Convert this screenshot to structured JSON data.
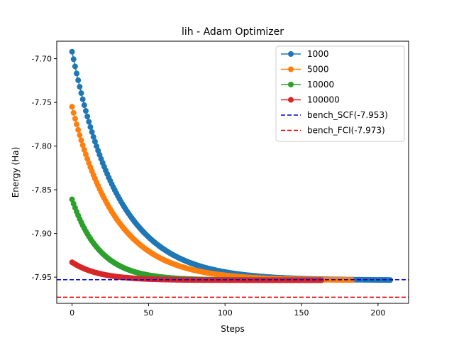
{
  "chart_data": {
    "type": "line",
    "title": "lih - Adam Optimizer",
    "xlabel": "Steps",
    "ylabel": "Energy (Ha)",
    "xlim": [
      -10,
      220
    ],
    "ylim": [
      -7.98,
      -7.68
    ],
    "xticks": [
      0,
      50,
      100,
      150,
      200
    ],
    "yticks": [
      -7.7,
      -7.75,
      -7.8,
      -7.85,
      -7.9,
      -7.95
    ],
    "xtick_labels": [
      "0",
      "50",
      "100",
      "150",
      "200"
    ],
    "ytick_labels": [
      "-7.70",
      "-7.75",
      "-7.80",
      "-7.85",
      "-7.90",
      "-7.95"
    ],
    "grid": false,
    "legend_position": "top-right",
    "series": [
      {
        "name": "1000",
        "color": "#1f77b4",
        "marker": "circle",
        "steps": 209,
        "start": -7.692,
        "end": -7.9535,
        "tau": 30
      },
      {
        "name": "5000",
        "color": "#ff7f0e",
        "marker": "circle",
        "steps": 184,
        "start": -7.755,
        "end": -7.9535,
        "tau": 28
      },
      {
        "name": "10000",
        "color": "#2ca02c",
        "marker": "circle",
        "steps": 164,
        "start": -7.861,
        "end": -7.9535,
        "tau": 18
      },
      {
        "name": "100000",
        "color": "#d62728",
        "marker": "circle",
        "steps": 164,
        "start": -7.933,
        "end": -7.9535,
        "tau": 18
      }
    ],
    "reference_lines": [
      {
        "name": "bench_SCF(-7.953)",
        "value": -7.953,
        "color": "#0000cc",
        "style": "dashed"
      },
      {
        "name": "bench_FCI(-7.973)",
        "value": -7.973,
        "color": "#dd0000",
        "style": "dashed"
      }
    ]
  }
}
